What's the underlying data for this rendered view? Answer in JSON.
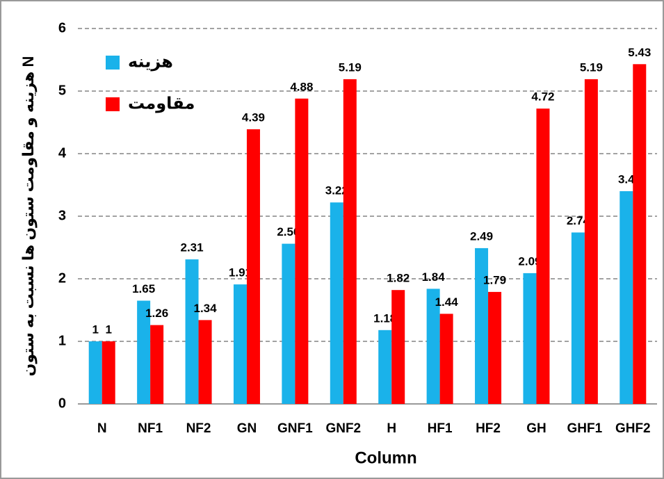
{
  "chart_data": {
    "type": "bar",
    "x_label": "Column",
    "y_label": "هزینه و مقاومت ستون ها نسبت به ستون N",
    "categories": [
      "N",
      "NF1",
      "NF2",
      "GN",
      "GNF1",
      "GNF2",
      "H",
      "HF1",
      "HF2",
      "GH",
      "GHF1",
      "GHF2"
    ],
    "series": [
      {
        "name": "هزینه",
        "color": "#1ab2ea",
        "values": [
          1,
          1.65,
          2.31,
          1.91,
          2.56,
          3.22,
          1.18,
          1.84,
          2.49,
          2.09,
          2.74,
          3.4
        ]
      },
      {
        "name": "مقاومت",
        "color": "#ff0000",
        "values": [
          1,
          1.26,
          1.34,
          4.39,
          4.88,
          5.19,
          1.82,
          1.44,
          1.79,
          4.72,
          5.19,
          5.43
        ]
      }
    ],
    "ylim": [
      0,
      6
    ],
    "yticks": [
      0,
      1,
      2,
      3,
      4,
      5,
      6
    ],
    "grid": true,
    "legend": "upper left"
  }
}
